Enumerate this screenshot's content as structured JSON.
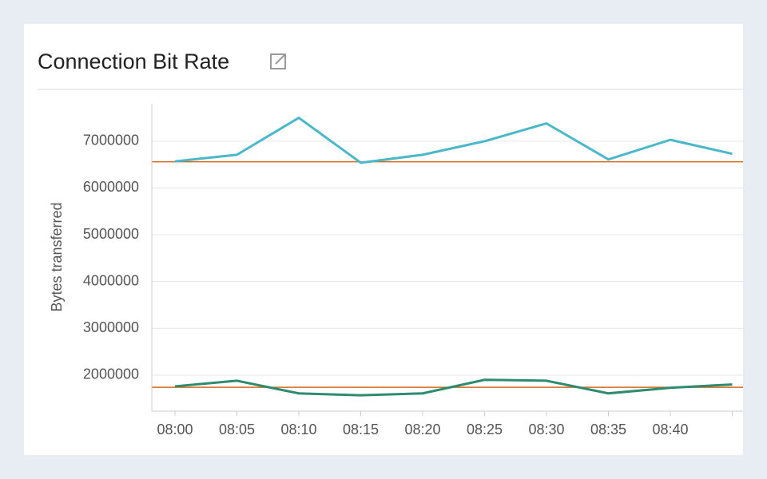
{
  "chart_data": {
    "type": "line",
    "title": "Connection Bit Rate",
    "y_label": "Bytes transferred",
    "categories": [
      "08:00",
      "08:05",
      "08:10",
      "08:15",
      "08:20",
      "08:25",
      "08:30",
      "08:35",
      "08:40",
      null
    ],
    "series": [
      {
        "color": "#4ab8c8",
        "values": [
          6570000,
          6710000,
          7500000,
          6540000,
          6710000,
          7000000,
          7380000,
          6610000,
          7030000,
          6730000
        ]
      },
      {
        "color": "#2e8b6e",
        "values": [
          1760000,
          1880000,
          1610000,
          1570000,
          1610000,
          1900000,
          1880000,
          1610000,
          1730000,
          1800000
        ]
      }
    ],
    "reference_lines": [
      {
        "value": 6560000,
        "color": "#d2691e"
      },
      {
        "value": 1740000,
        "color": "#d2691e"
      }
    ],
    "ylim": [
      1230000,
      7800000
    ],
    "yticks": [
      2000000,
      3000000,
      4000000,
      5000000,
      6000000,
      7000000
    ],
    "grid": true
  }
}
